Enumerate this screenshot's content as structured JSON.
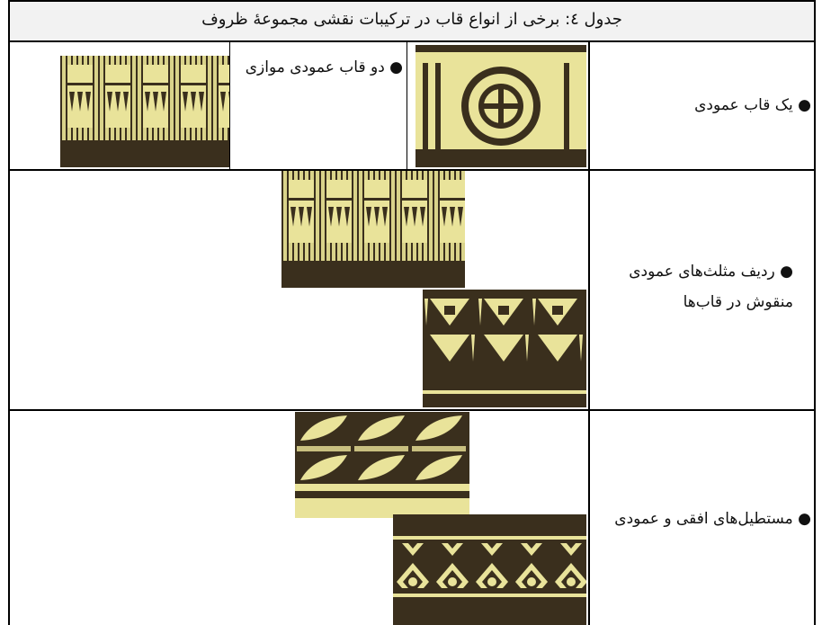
{
  "table": {
    "title": "جدول ٤: برخی از انواع قاب در ترکیبات نقشی مجموعهٔ ظروف",
    "rows": [
      [
        "● یک قاب عمودی",
        "● دو قاب عمودی موازی"
      ],
      [
        "● ردیف مثلث‌های عمودی منقوش در قاب‌ها"
      ],
      [
        "● مستطیل‌های افقی و عمودی"
      ]
    ]
  }
}
